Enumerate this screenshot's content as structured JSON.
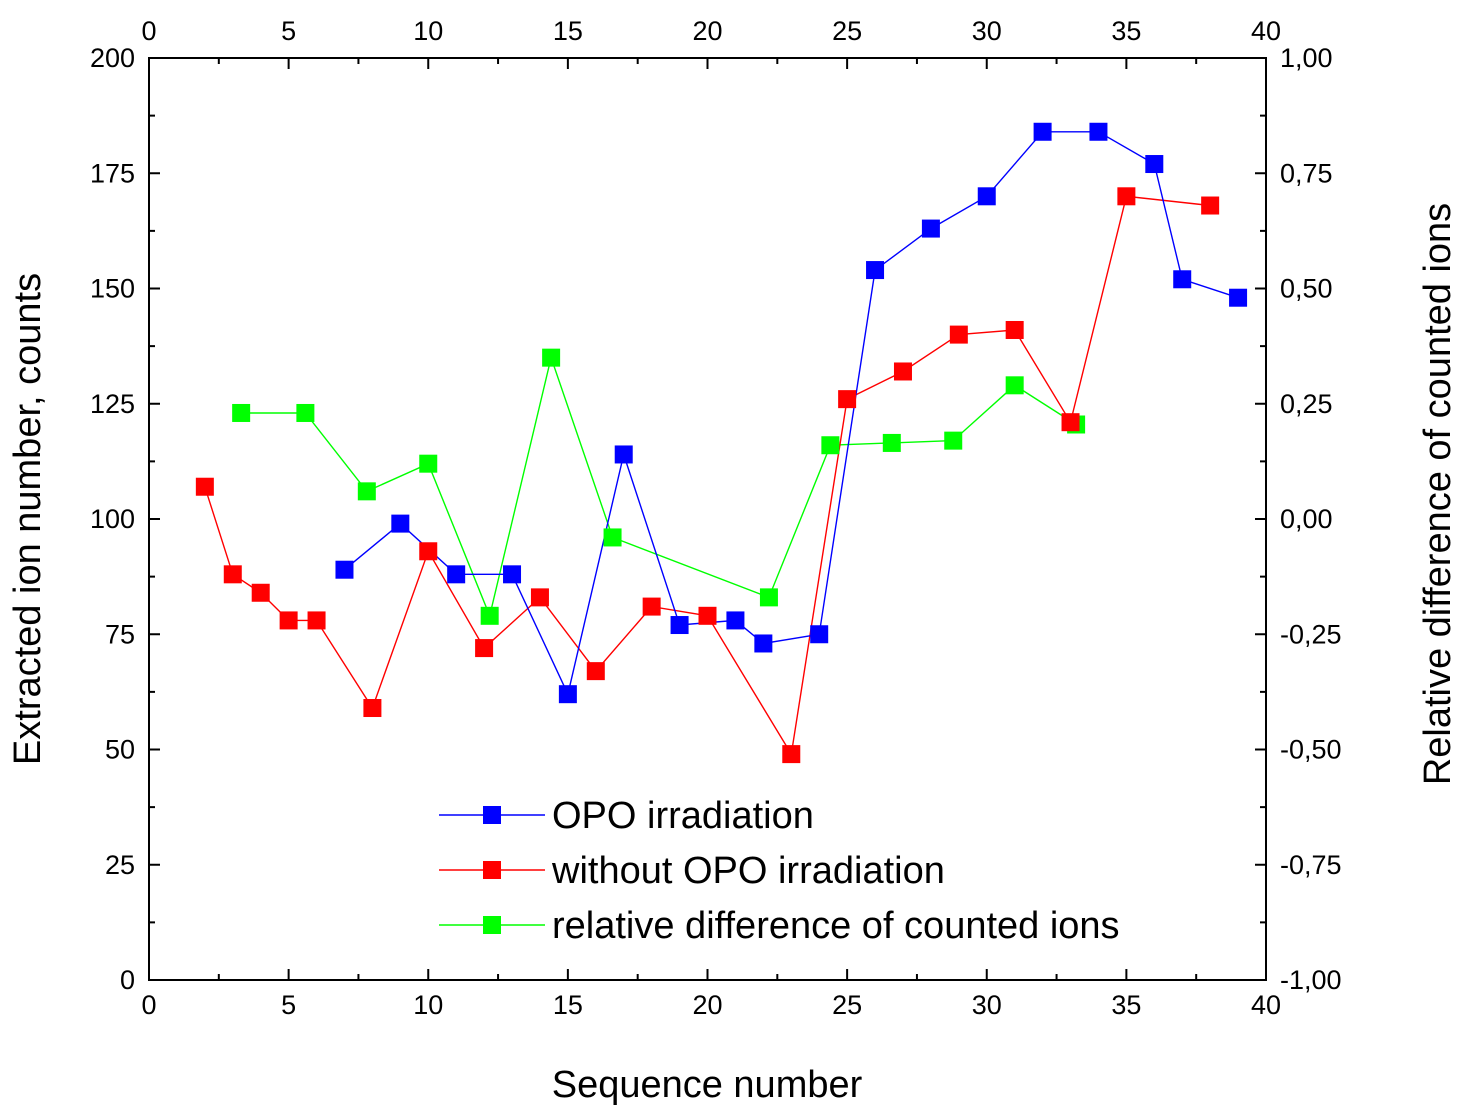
{
  "chart_data": {
    "type": "line",
    "xlabel": "Sequence number",
    "ylabel": "Extracted ion number, counts",
    "y2label": "Relative difference of counted ions",
    "xlim": [
      0,
      40
    ],
    "ylim": [
      0,
      200
    ],
    "y2lim": [
      -1.0,
      1.0
    ],
    "xticks": [
      0,
      5,
      10,
      15,
      20,
      25,
      30,
      35,
      40
    ],
    "xtick_labels": [
      "0",
      "5",
      "10",
      "15",
      "20",
      "25",
      "30",
      "35",
      "40"
    ],
    "yticks": [
      0,
      25,
      50,
      75,
      100,
      125,
      150,
      175,
      200
    ],
    "ytick_labels": [
      "0",
      "25",
      "50",
      "75",
      "100",
      "125",
      "150",
      "175",
      "200"
    ],
    "y2ticks": [
      -1.0,
      -0.75,
      -0.5,
      -0.25,
      0.0,
      0.25,
      0.5,
      0.75,
      1.0
    ],
    "y2tick_labels": [
      "-1,00",
      "-0,75",
      "-0,50",
      "-0,25",
      "0,00",
      "0,25",
      "0,50",
      "0,75",
      "1,00"
    ],
    "grid": false,
    "legend_position": "bottom-center",
    "series": [
      {
        "name": "OPO irradiation",
        "color": "#0000ff",
        "axis": "left",
        "x": [
          7,
          9,
          11,
          13,
          15,
          17,
          19,
          21,
          22,
          24,
          26,
          28,
          30,
          32,
          34,
          36,
          37,
          39
        ],
        "y": [
          89,
          99,
          88,
          88,
          62,
          114,
          77,
          78,
          73,
          75,
          154,
          163,
          170,
          184,
          184,
          177,
          152,
          148
        ]
      },
      {
        "name": "without OPO irradiation",
        "color": "#ff0000",
        "axis": "left",
        "x": [
          2,
          3,
          4,
          5,
          6,
          8,
          10,
          12,
          14,
          16,
          18,
          20,
          23,
          25,
          27,
          29,
          31,
          33,
          35,
          38
        ],
        "y": [
          107,
          88,
          84,
          78,
          78,
          59,
          93,
          72,
          83,
          67,
          81,
          79,
          49,
          126,
          132,
          140,
          141,
          121,
          170,
          168
        ]
      },
      {
        "name": "relative difference of counted ions",
        "color": "#00ff00",
        "axis": "right",
        "x": [
          3.3,
          5.6,
          7.8,
          10.0,
          12.2,
          14.4,
          16.6,
          22.2,
          24.4,
          26.6,
          28.8,
          31.0,
          33.2
        ],
        "y": [
          0.23,
          0.23,
          0.06,
          0.12,
          -0.21,
          0.35,
          -0.04,
          -0.17,
          0.16,
          0.165,
          0.17,
          0.29,
          0.205
        ]
      }
    ]
  }
}
